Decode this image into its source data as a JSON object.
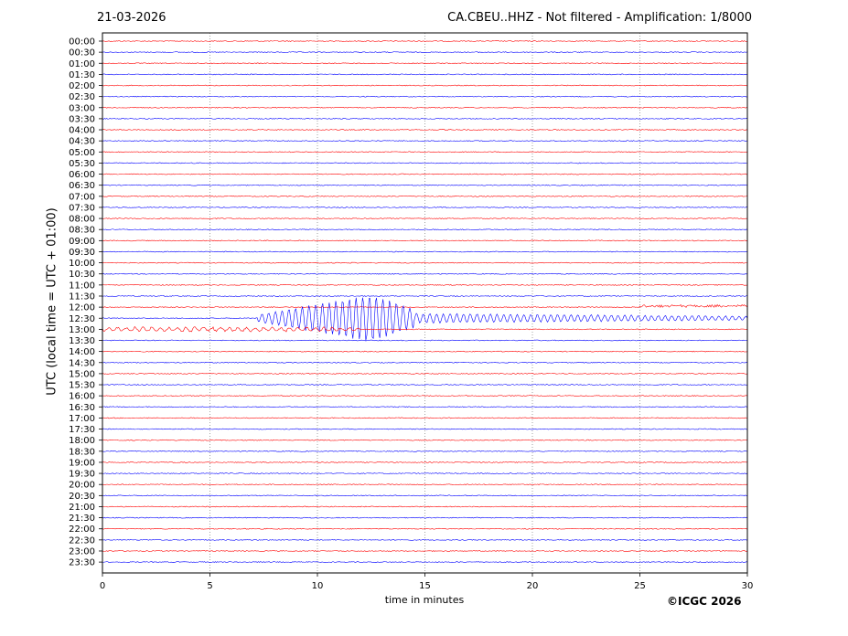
{
  "header": {
    "date": "21-03-2026",
    "title": "CA.CBEU..HHZ - Not filtered - Amplification: 1/8000"
  },
  "footer": {
    "credit": "©ICGC 2026"
  },
  "chart_data": {
    "type": "line",
    "title": "CA.CBEU..HHZ - Not filtered - Amplification: 1/8000",
    "xlabel": "time in minutes",
    "ylabel": "UTC (local time = UTC + 01:00)",
    "xlim": [
      0,
      30
    ],
    "xticks": [
      "0",
      "5",
      "10",
      "15",
      "20",
      "25",
      "30"
    ],
    "grid_x": [
      5,
      10,
      15,
      20,
      25
    ],
    "rows": [
      "00:00",
      "00:30",
      "01:00",
      "01:30",
      "02:00",
      "02:30",
      "03:00",
      "03:30",
      "04:00",
      "04:30",
      "05:00",
      "05:30",
      "06:00",
      "06:30",
      "07:00",
      "07:30",
      "08:00",
      "08:30",
      "09:00",
      "09:30",
      "10:00",
      "10:30",
      "11:00",
      "11:30",
      "12:00",
      "12:30",
      "13:00",
      "13:30",
      "14:00",
      "14:30",
      "15:00",
      "15:30",
      "16:00",
      "16:30",
      "17:00",
      "17:30",
      "18:00",
      "18:30",
      "19:00",
      "19:30",
      "20:00",
      "20:30",
      "21:00",
      "21:30",
      "22:00",
      "22:30",
      "23:00",
      "23:30"
    ],
    "trace_colors": [
      "#ff0000",
      "#0000ff"
    ],
    "events": [
      {
        "row": "12:30",
        "start_min": 7.2,
        "end_min": 14.5,
        "peak_min": 12.5,
        "peak_amplitude_rows": 2.1,
        "coda_end_min": 30
      },
      {
        "row": "13:00",
        "start_min": 0,
        "end_min": 12,
        "peak_amplitude_rows": 0.25
      },
      {
        "row": "12:00",
        "start_min": 25,
        "end_min": 30,
        "offset_rows": 0.1
      }
    ]
  }
}
